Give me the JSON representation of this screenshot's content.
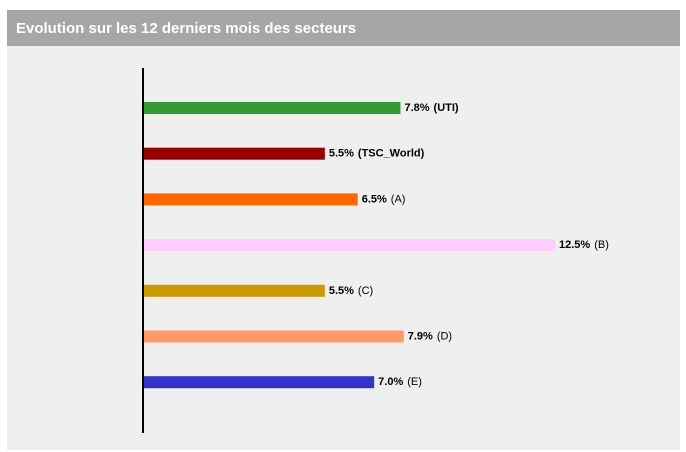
{
  "chart_data": {
    "type": "bar",
    "orientation": "horizontal",
    "title": "Evolution sur les 12 derniers mois des secteurs",
    "categories": [
      "(UTI)",
      "(TSC_World)",
      "(A)",
      "(B)",
      "(C)",
      "(D)",
      "(E)"
    ],
    "values": [
      7.8,
      5.5,
      6.5,
      12.5,
      5.5,
      7.9,
      7.0
    ],
    "value_labels": [
      "7.8%",
      "5.5%",
      "6.5%",
      "12.5%",
      "5.5%",
      "7.9%",
      "7.0%"
    ],
    "colors": [
      "#339933",
      "#990000",
      "#ff6600",
      "#ffccff",
      "#cc9900",
      "#ff9966",
      "#3333cc"
    ],
    "bold_categories": [
      true,
      true,
      false,
      false,
      false,
      false,
      false
    ],
    "xlim": [
      0,
      12.5
    ]
  }
}
